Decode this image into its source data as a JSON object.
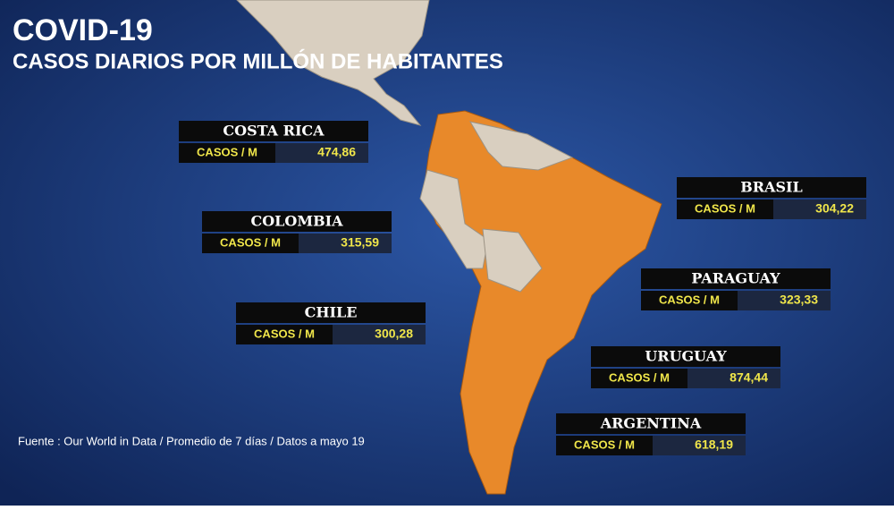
{
  "header": {
    "title": "COVID-19",
    "subtitle": "CASOS DIARIOS POR MILLÓN DE HABITANTES"
  },
  "labels": [
    {
      "country": "COSTA RICA",
      "unit": "CASOS / M",
      "value": "474,86"
    },
    {
      "country": "COLOMBIA",
      "unit": "CASOS / M",
      "value": "315,59"
    },
    {
      "country": "CHILE",
      "unit": "CASOS / M",
      "value": "300,28"
    },
    {
      "country": "BRASIL",
      "unit": "CASOS / M",
      "value": "304,22"
    },
    {
      "country": "PARAGUAY",
      "unit": "CASOS / M",
      "value": "323,33"
    },
    {
      "country": "URUGUAY",
      "unit": "CASOS / M",
      "value": "874,44"
    },
    {
      "country": "ARGENTINA",
      "unit": "CASOS / M",
      "value": "618,19"
    }
  ],
  "source": "Fuente : Our World in Data / Promedio de 7 días / Datos a mayo 19"
}
